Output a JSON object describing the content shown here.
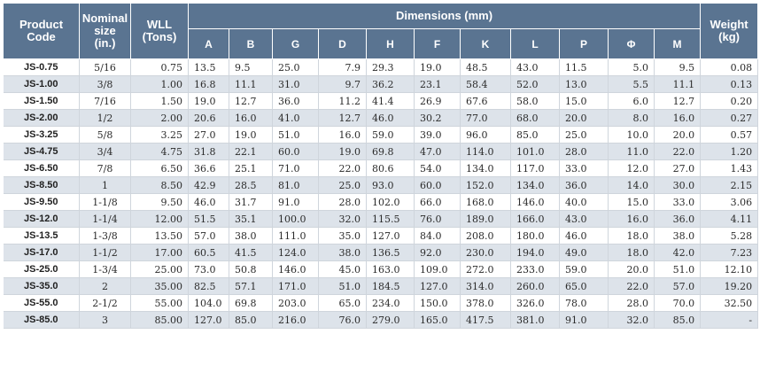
{
  "headers": {
    "product_code": "Product\nCode",
    "nominal_size": "Nominal\nsize\n(in.)",
    "wll": "WLL\n(Tons)",
    "dimensions": "Dimensions (mm)",
    "weight": "Weight\n(kg)",
    "dim_columns": [
      "A",
      "B",
      "G",
      "D",
      "H",
      "F",
      "K",
      "L",
      "P",
      "Φ",
      "M"
    ]
  },
  "rows": [
    [
      "JS-0.75",
      "5/16",
      "0.75",
      "13.5",
      "9.5",
      "25.0",
      "7.9",
      "29.3",
      "19.0",
      "48.5",
      "43.0",
      "11.5",
      "5.0",
      "9.5",
      "0.08"
    ],
    [
      "JS-1.00",
      "3/8",
      "1.00",
      "16.8",
      "11.1",
      "31.0",
      "9.7",
      "36.2",
      "23.1",
      "58.4",
      "52.0",
      "13.0",
      "5.5",
      "11.1",
      "0.13"
    ],
    [
      "JS-1.50",
      "7/16",
      "1.50",
      "19.0",
      "12.7",
      "36.0",
      "11.2",
      "41.4",
      "26.9",
      "67.6",
      "58.0",
      "15.0",
      "6.0",
      "12.7",
      "0.20"
    ],
    [
      "JS-2.00",
      "1/2",
      "2.00",
      "20.6",
      "16.0",
      "41.0",
      "12.7",
      "46.0",
      "30.2",
      "77.0",
      "68.0",
      "20.0",
      "8.0",
      "16.0",
      "0.27"
    ],
    [
      "JS-3.25",
      "5/8",
      "3.25",
      "27.0",
      "19.0",
      "51.0",
      "16.0",
      "59.0",
      "39.0",
      "96.0",
      "85.0",
      "25.0",
      "10.0",
      "20.0",
      "0.57"
    ],
    [
      "JS-4.75",
      "3/4",
      "4.75",
      "31.8",
      "22.1",
      "60.0",
      "19.0",
      "69.8",
      "47.0",
      "114.0",
      "101.0",
      "28.0",
      "11.0",
      "22.0",
      "1.20"
    ],
    [
      "JS-6.50",
      "7/8",
      "6.50",
      "36.6",
      "25.1",
      "71.0",
      "22.0",
      "80.6",
      "54.0",
      "134.0",
      "117.0",
      "33.0",
      "12.0",
      "27.0",
      "1.43"
    ],
    [
      "JS-8.50",
      "1",
      "8.50",
      "42.9",
      "28.5",
      "81.0",
      "25.0",
      "93.0",
      "60.0",
      "152.0",
      "134.0",
      "36.0",
      "14.0",
      "30.0",
      "2.15"
    ],
    [
      "JS-9.50",
      "1-1/8",
      "9.50",
      "46.0",
      "31.7",
      "91.0",
      "28.0",
      "102.0",
      "66.0",
      "168.0",
      "146.0",
      "40.0",
      "15.0",
      "33.0",
      "3.06"
    ],
    [
      "JS-12.0",
      "1-1/4",
      "12.00",
      "51.5",
      "35.1",
      "100.0",
      "32.0",
      "115.5",
      "76.0",
      "189.0",
      "166.0",
      "43.0",
      "16.0",
      "36.0",
      "4.11"
    ],
    [
      "JS-13.5",
      "1-3/8",
      "13.50",
      "57.0",
      "38.0",
      "111.0",
      "35.0",
      "127.0",
      "84.0",
      "208.0",
      "180.0",
      "46.0",
      "18.0",
      "38.0",
      "5.28"
    ],
    [
      "JS-17.0",
      "1-1/2",
      "17.00",
      "60.5",
      "41.5",
      "124.0",
      "38.0",
      "136.5",
      "92.0",
      "230.0",
      "194.0",
      "49.0",
      "18.0",
      "42.0",
      "7.23"
    ],
    [
      "JS-25.0",
      "1-3/4",
      "25.00",
      "73.0",
      "50.8",
      "146.0",
      "45.0",
      "163.0",
      "109.0",
      "272.0",
      "233.0",
      "59.0",
      "20.0",
      "51.0",
      "12.10"
    ],
    [
      "JS-35.0",
      "2",
      "35.00",
      "82.5",
      "57.1",
      "171.0",
      "51.0",
      "184.5",
      "127.0",
      "314.0",
      "260.0",
      "65.0",
      "22.0",
      "57.0",
      "19.20"
    ],
    [
      "JS-55.0",
      "2-1/2",
      "55.00",
      "104.0",
      "69.8",
      "203.0",
      "65.0",
      "234.0",
      "150.0",
      "378.0",
      "326.0",
      "78.0",
      "28.0",
      "70.0",
      "32.50"
    ],
    [
      "JS-85.0",
      "3",
      "85.00",
      "127.0",
      "85.0",
      "216.0",
      "76.0",
      "279.0",
      "165.0",
      "417.5",
      "381.0",
      "91.0",
      "32.0",
      "85.0",
      "-"
    ]
  ],
  "colors": {
    "header_bg": "#5a7491",
    "header_text": "#ffffff",
    "alt_row_bg": "#dde3ea",
    "row_bg": "#ffffff"
  }
}
